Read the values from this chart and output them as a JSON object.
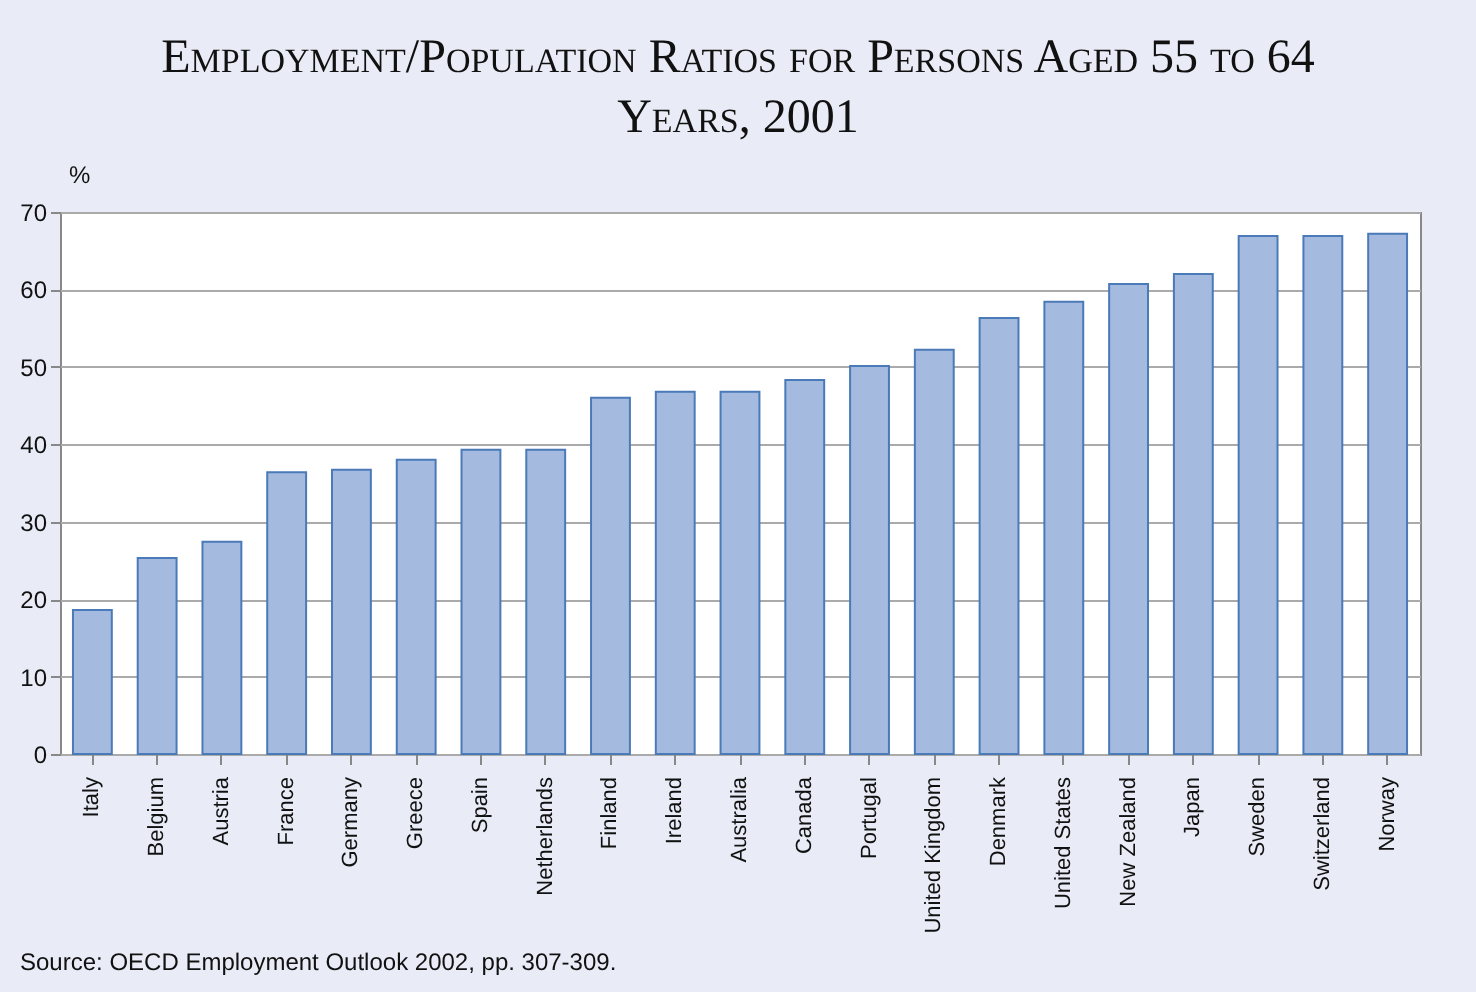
{
  "chart_data": {
    "type": "bar",
    "title": "Employment/Population Ratios for Persons Aged 55 to 64 Years, 2001",
    "ylabel": "%",
    "categories": [
      "Italy",
      "Belgium",
      "Austria",
      "France",
      "Germany",
      "Greece",
      "Spain",
      "Netherlands",
      "Finland",
      "Ireland",
      "Australia",
      "Canada",
      "Portugal",
      "United Kingdom",
      "Denmark",
      "United States",
      "New Zealand",
      "Japan",
      "Sweden",
      "Switzerland",
      "Norway"
    ],
    "values": [
      18.6,
      25.3,
      27.4,
      36.4,
      36.7,
      38,
      39.3,
      39.3,
      46,
      46.8,
      46.8,
      48.3,
      50.1,
      52.2,
      56.3,
      58.4,
      60.7,
      62,
      66.9,
      66.9,
      67.2
    ],
    "color": "#a4bbdf",
    "ylim": [
      0,
      70
    ],
    "yticks": [
      0,
      10,
      20,
      30,
      40,
      50,
      60,
      70
    ],
    "grid": "y",
    "annotations": [
      "Source: OECD Employment Outlook 2002, pp. 307-309."
    ]
  }
}
